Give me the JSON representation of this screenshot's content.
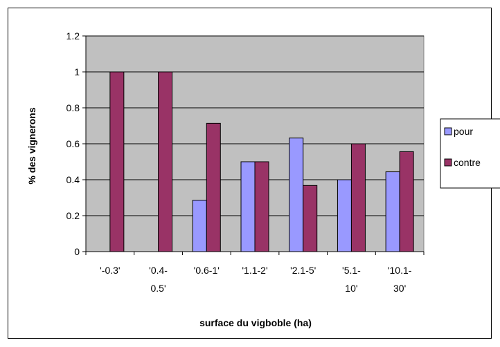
{
  "chart_data": {
    "type": "bar",
    "categories": [
      [
        "'-0.3'"
      ],
      [
        "'0.4-",
        "0.5'"
      ],
      [
        "'0.6-1'"
      ],
      [
        "'1.1-2'"
      ],
      [
        "'2.1-5'"
      ],
      [
        "'5.1-",
        "10'"
      ],
      [
        "'10.1-",
        "30'"
      ]
    ],
    "series": [
      {
        "name": "pour",
        "values": [
          0,
          0,
          0.286,
          0.5,
          0.632,
          0.4,
          0.444
        ],
        "color": "#9999ff"
      },
      {
        "name": "contre",
        "values": [
          1,
          1,
          0.714,
          0.5,
          0.368,
          0.6,
          0.556
        ],
        "color": "#993366"
      }
    ],
    "ylim": [
      0,
      1.2
    ],
    "yticks": [
      "0",
      "0.2",
      "0.4",
      "0.6",
      "0.8",
      "1",
      "1.2"
    ],
    "xlabel": "surface du vigboble (ha)",
    "ylabel": "% des vignerons",
    "plot_background": "#c0c0c0",
    "grid": true,
    "legend_position": "right"
  }
}
